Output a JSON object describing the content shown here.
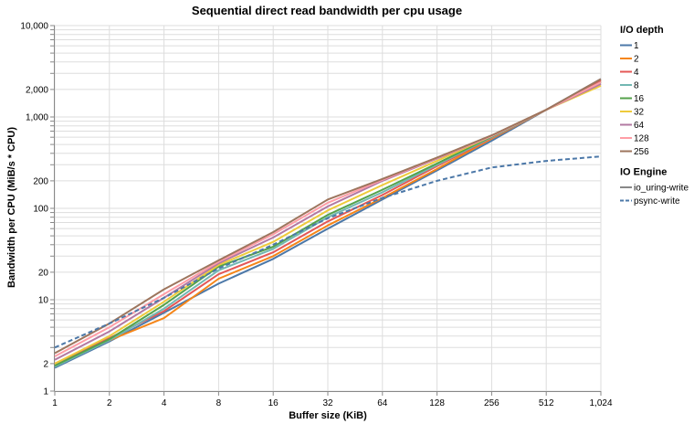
{
  "chart_data": {
    "type": "line",
    "title": "Sequential direct read bandwidth per cpu usage",
    "xlabel": "Buffer size (KiB)",
    "ylabel": "Bandwidth per CPU (MiB/s * CPU)",
    "x_scale": "log2",
    "y_scale": "log10",
    "xlim": [
      1,
      1024
    ],
    "ylim": [
      1,
      10000
    ],
    "x": [
      1,
      2,
      4,
      8,
      16,
      32,
      64,
      128,
      256,
      512,
      1024
    ],
    "x_tick_labels": [
      "1",
      "2",
      "4",
      "8",
      "16",
      "32",
      "64",
      "128",
      "256",
      "512",
      "1,024"
    ],
    "y_ticks": [
      1,
      2,
      10,
      20,
      100,
      200,
      1000,
      2000,
      10000
    ],
    "y_tick_labels": [
      "1",
      "2",
      "10",
      "20",
      "100",
      "200",
      "1,000",
      "2,000",
      "10,000"
    ],
    "grid": true,
    "legend_placement": "right",
    "legends": [
      {
        "title": "I/O depth",
        "entries": [
          {
            "label": "1",
            "color": "#4c78a8"
          },
          {
            "label": "2",
            "color": "#f58518"
          },
          {
            "label": "4",
            "color": "#e45756"
          },
          {
            "label": "8",
            "color": "#72b7b2"
          },
          {
            "label": "16",
            "color": "#54a24b"
          },
          {
            "label": "32",
            "color": "#eeca3b"
          },
          {
            "label": "64",
            "color": "#b279a2"
          },
          {
            "label": "128",
            "color": "#ff9da6"
          },
          {
            "label": "256",
            "color": "#9d755d"
          }
        ]
      },
      {
        "title": "IO Engine",
        "entries": [
          {
            "label": "io_uring-write",
            "color": "#888888",
            "dash": "solid"
          },
          {
            "label": "psync-write",
            "color": "#4c78a8",
            "dash": "dashed"
          }
        ]
      }
    ],
    "series": [
      {
        "name": "1",
        "engine": "io_uring-write",
        "color": "#4c78a8",
        "values": [
          1.8,
          3.5,
          7.2,
          15,
          28,
          60,
          125,
          260,
          550,
          1200,
          2600
        ]
      },
      {
        "name": "2",
        "engine": "io_uring-write",
        "color": "#f58518",
        "values": [
          1.9,
          3.6,
          6.3,
          17,
          30,
          65,
          130,
          270,
          580,
          1200,
          2500
        ]
      },
      {
        "name": "4",
        "engine": "io_uring-write",
        "color": "#e45756",
        "values": [
          2.0,
          3.8,
          7.5,
          19,
          33,
          72,
          140,
          290,
          590,
          1200,
          2500
        ]
      },
      {
        "name": "8",
        "engine": "io_uring-write",
        "color": "#72b7b2",
        "values": [
          1.85,
          3.6,
          8.0,
          21,
          36,
          80,
          150,
          300,
          600,
          1200,
          2400
        ]
      },
      {
        "name": "16",
        "engine": "io_uring-write",
        "color": "#54a24b",
        "values": [
          1.9,
          3.7,
          8.8,
          23,
          38,
          85,
          160,
          310,
          610,
          1200,
          2400
        ]
      },
      {
        "name": "32",
        "engine": "io_uring-write",
        "color": "#eeca3b",
        "values": [
          2.0,
          4.0,
          9.5,
          24,
          43,
          95,
          180,
          330,
          620,
          1200,
          2200
        ]
      },
      {
        "name": "64",
        "engine": "io_uring-write",
        "color": "#b279a2",
        "values": [
          2.2,
          4.5,
          10.5,
          25,
          48,
          105,
          200,
          350,
          620,
          1200,
          2300
        ]
      },
      {
        "name": "128",
        "engine": "io_uring-write",
        "color": "#ff9da6",
        "values": [
          2.4,
          5.0,
          11.5,
          26,
          52,
          115,
          205,
          355,
          620,
          1200,
          2400
        ]
      },
      {
        "name": "256",
        "engine": "io_uring-write",
        "color": "#9d755d",
        "values": [
          2.6,
          5.5,
          13,
          27,
          55,
          125,
          210,
          360,
          630,
          1200,
          2600
        ]
      },
      {
        "name": "1",
        "engine": "psync-write",
        "color": "#4c78a8",
        "dashed": true,
        "values": [
          3.0,
          5.5,
          10.5,
          22,
          40,
          78,
          130,
          200,
          280,
          330,
          370
        ]
      }
    ]
  }
}
